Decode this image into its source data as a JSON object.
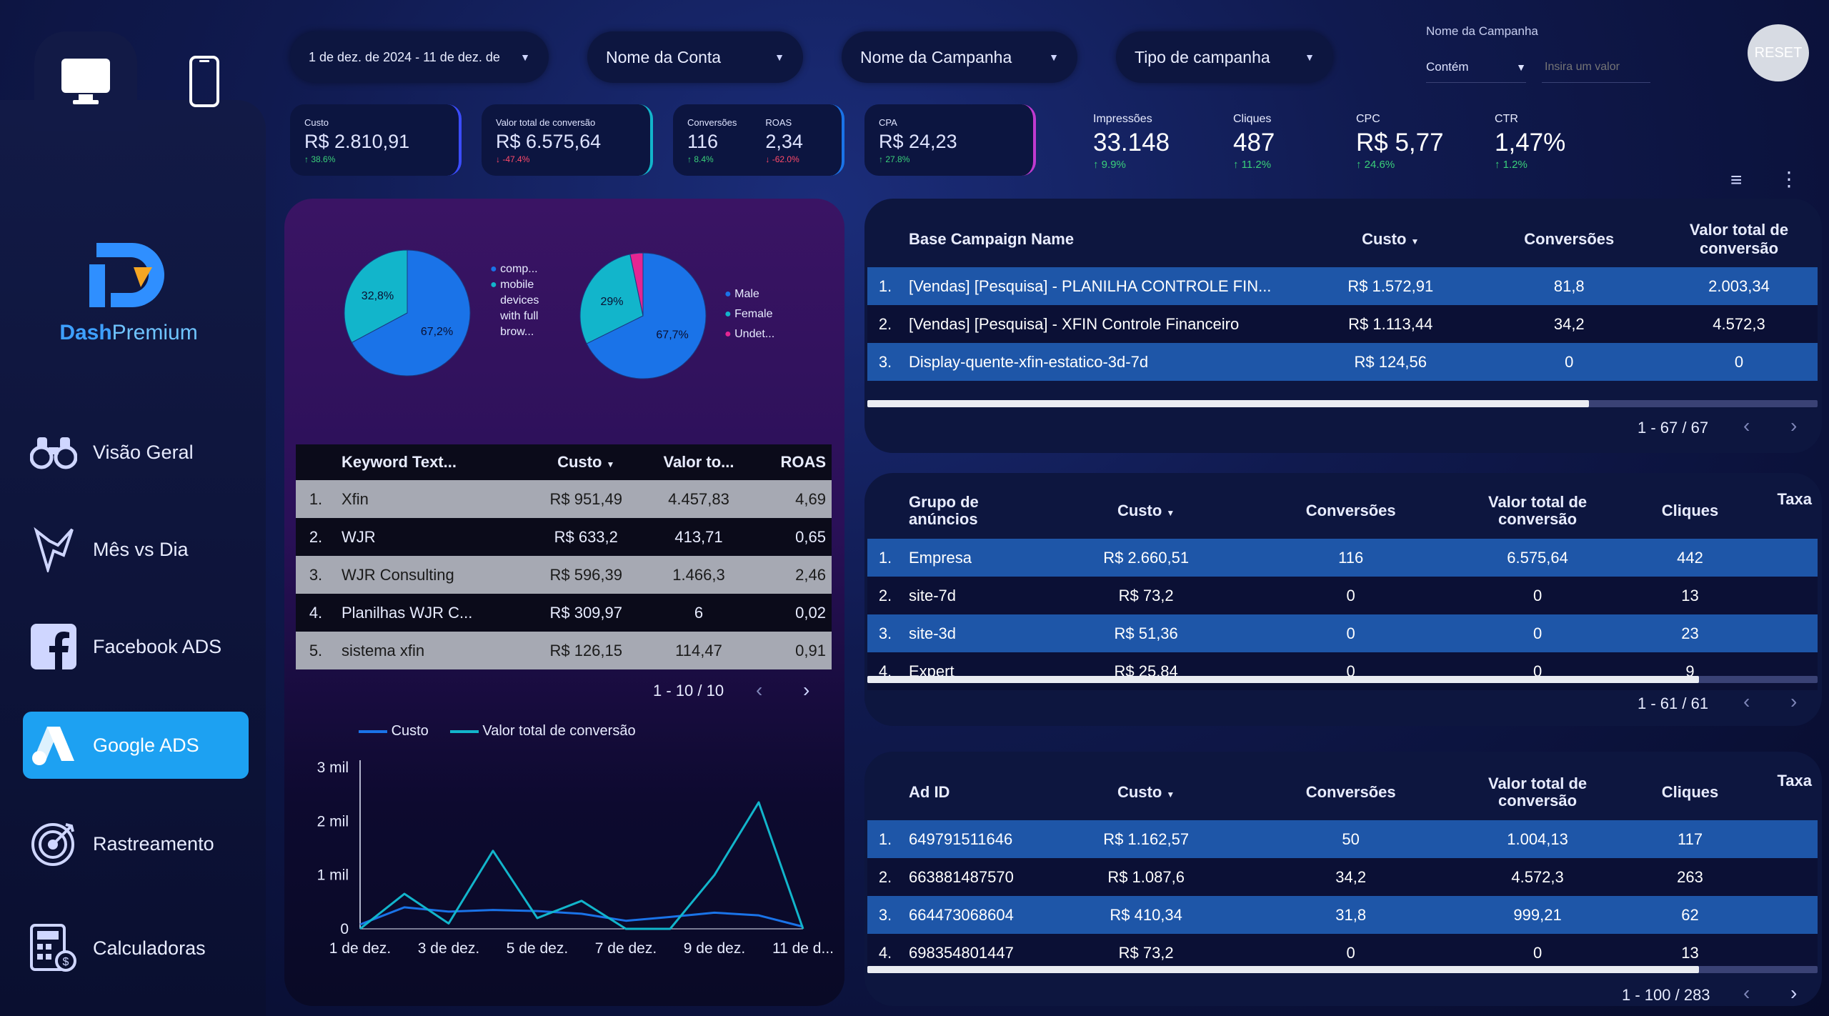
{
  "filters": {
    "date_range": "1 de dez. de 2024 - 11 de dez. de",
    "account": "Nome da Conta",
    "campaign": "Nome da Campanha",
    "campaign_type": "Tipo de campanha",
    "campaign_name_label": "Nome da Campanha",
    "match_type": "Contém",
    "value_placeholder": "Insira um valor",
    "reset": "RESET"
  },
  "kpis": {
    "custo": {
      "label": "Custo",
      "value": "R$ 2.810,91",
      "change": "38.6%"
    },
    "valor_total": {
      "label": "Valor total de conversão",
      "value": "R$ 6.575,64",
      "change": "-47.4%"
    },
    "conversoes": {
      "label": "Conversões",
      "value": "116",
      "change": "8.4%"
    },
    "roas": {
      "label": "ROAS",
      "value": "2,34",
      "change": "-62.0%"
    },
    "cpa": {
      "label": "CPA",
      "value": "R$ 24,23",
      "change": "27.8%"
    },
    "impressoes": {
      "label": "Impressões",
      "value": "33.148",
      "change": "9.9%"
    },
    "cliques": {
      "label": "Cliques",
      "value": "487",
      "change": "11.2%"
    },
    "cpc": {
      "label": "CPC",
      "value": "R$ 5,77",
      "change": "24.6%"
    },
    "ctr": {
      "label": "CTR",
      "value": "1,47%",
      "change": "1.2%"
    }
  },
  "sidebar": {
    "logo_bold": "Dash",
    "logo_light": "Premium",
    "items": [
      {
        "label": "Visão Geral",
        "icon": "binoculars-icon"
      },
      {
        "label": "Mês vs Dia",
        "icon": "lightning-icon"
      },
      {
        "label": "Facebook ADS",
        "icon": "facebook-icon"
      },
      {
        "label": "Google ADS",
        "icon": "google-ads-icon"
      },
      {
        "label": "Rastreamento",
        "icon": "target-icon"
      },
      {
        "label": "Calculadoras",
        "icon": "calculator-icon"
      }
    ]
  },
  "pie_device": {
    "slices": [
      {
        "label": "comp...",
        "value": 67.2,
        "text": "67,2%",
        "color": "#1a73e8"
      },
      {
        "label": "mobile devices with full brow...",
        "value": 32.8,
        "text": "32,8%",
        "color": "#12b5cb"
      }
    ]
  },
  "pie_gender": {
    "slices": [
      {
        "label": "Male",
        "value": 67.7,
        "text": "67,7%",
        "color": "#1a73e8"
      },
      {
        "label": "Female",
        "value": 29,
        "text": "29%",
        "color": "#12b5cb"
      },
      {
        "label": "Undet...",
        "value": 3.3,
        "text": "",
        "color": "#e52592"
      }
    ]
  },
  "keywords": {
    "headers": [
      "Keyword Text...",
      "Custo",
      "Valor to...",
      "ROAS"
    ],
    "rows": [
      [
        "1.",
        "Xfin",
        "R$ 951,49",
        "4.457,83",
        "4,69"
      ],
      [
        "2.",
        "WJR",
        "R$ 633,2",
        "413,71",
        "0,65"
      ],
      [
        "3.",
        "WJR Consulting",
        "R$ 596,39",
        "1.466,3",
        "2,46"
      ],
      [
        "4.",
        "Planilhas WJR C...",
        "R$ 309,97",
        "6",
        "0,02"
      ],
      [
        "5.",
        "sistema xfin",
        "R$ 126,15",
        "114,47",
        "0,91"
      ]
    ],
    "pager": "1 - 10 / 10"
  },
  "chart_data": {
    "type": "line",
    "x": [
      "1 de dez.",
      "2 de dez.",
      "3 de dez.",
      "4 de dez.",
      "5 de dez.",
      "6 de dez.",
      "7 de dez.",
      "8 de dez.",
      "9 de dez.",
      "10 de dez.",
      "11 de dez."
    ],
    "xticks": [
      "1 de dez.",
      "3 de dez.",
      "5 de dez.",
      "7 de dez.",
      "9 de dez.",
      "11 de d..."
    ],
    "yticks": [
      "0",
      "1 mil",
      "2 mil",
      "3 mil"
    ],
    "ylim": [
      0,
      3000
    ],
    "series": [
      {
        "name": "Custo",
        "color": "#1a73e8",
        "values": [
          80,
          400,
          320,
          350,
          330,
          280,
          150,
          220,
          300,
          250,
          40
        ]
      },
      {
        "name": "Valor total de conversão",
        "color": "#12b5cb",
        "values": [
          0,
          650,
          100,
          1450,
          200,
          520,
          0,
          0,
          1000,
          2350,
          0
        ]
      }
    ]
  },
  "campaigns": {
    "headers": [
      "Base Campaign Name",
      "Custo",
      "Conversões",
      "Valor total de conversão"
    ],
    "rows": [
      [
        "1.",
        "[Vendas] [Pesquisa] - PLANILHA CONTROLE FIN...",
        "R$ 1.572,91",
        "81,8",
        "2.003,34"
      ],
      [
        "2.",
        "[Vendas] [Pesquisa] - XFIN Controle Financeiro",
        "R$ 1.113,44",
        "34,2",
        "4.572,3"
      ],
      [
        "3.",
        "Display-quente-xfin-estatico-3d-7d",
        "R$ 124,56",
        "0",
        "0"
      ]
    ],
    "pager": "1 - 67 / 67"
  },
  "adgroups": {
    "headers": [
      "Grupo de anúncios",
      "Custo",
      "Conversões",
      "Valor total de conversão",
      "Cliques",
      "Taxa"
    ],
    "rows": [
      [
        "1.",
        "Empresa",
        "R$ 2.660,51",
        "116",
        "6.575,64",
        "442"
      ],
      [
        "2.",
        "site-7d",
        "R$ 73,2",
        "0",
        "0",
        "13"
      ],
      [
        "3.",
        "site-3d",
        "R$ 51,36",
        "0",
        "0",
        "23"
      ],
      [
        "4.",
        "Expert",
        "R$ 25,84",
        "0",
        "0",
        "9"
      ]
    ],
    "pager": "1 - 61 / 61"
  },
  "ads": {
    "headers": [
      "Ad ID",
      "Custo",
      "Conversões",
      "Valor total de conversão",
      "Cliques",
      "Taxa"
    ],
    "rows": [
      [
        "1.",
        "649791511646",
        "R$ 1.162,57",
        "50",
        "1.004,13",
        "117"
      ],
      [
        "2.",
        "663881487570",
        "R$ 1.087,6",
        "34,2",
        "4.572,3",
        "263"
      ],
      [
        "3.",
        "664473068604",
        "R$ 410,34",
        "31,8",
        "999,21",
        "62"
      ],
      [
        "4.",
        "698354801447",
        "R$ 73,2",
        "0",
        "0",
        "13"
      ]
    ],
    "pager": "1 - 100 / 283"
  }
}
